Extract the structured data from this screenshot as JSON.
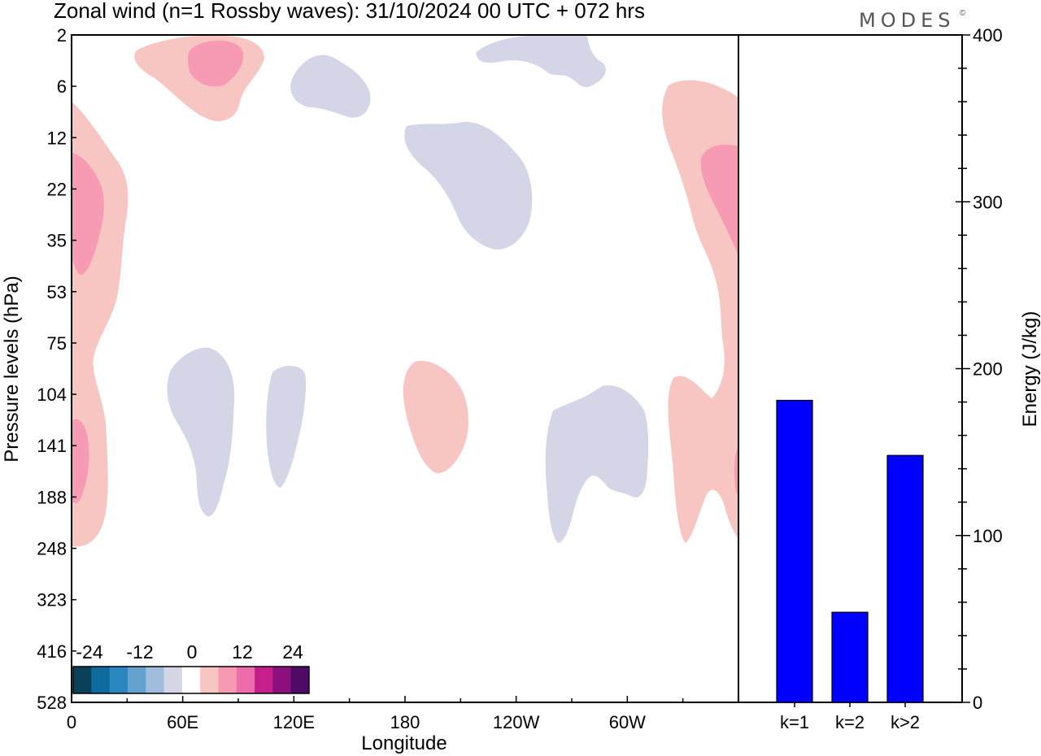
{
  "title": "Zonal wind (n=1 Rossby waves):  31/10/2024  00 UTC  + 072 hrs",
  "logo": "MODES",
  "logo_mark": "©",
  "colors": {
    "neg_weak": "#d4d5e6",
    "pos_weak": "#f8c6c2",
    "pos_mid": "#f79ab3",
    "pos_strong": "#ee6cab",
    "bar": "#0000ff"
  },
  "chart_data": [
    {
      "type": "heatmap",
      "kind": "filled contour (longitude–pressure section)",
      "xlabel": "Longitude",
      "ylabel": "Pressure levels (hPa)",
      "x_ticks": [
        "0",
        "60E",
        "120E",
        "180",
        "120W",
        "60W"
      ],
      "y_ticks": [
        "2",
        "6",
        "12",
        "22",
        "35",
        "53",
        "75",
        "104",
        "141",
        "188",
        "248",
        "323",
        "416",
        "528"
      ],
      "y_scale": "pressure levels (top = 2 hPa, bottom = 528 hPa)",
      "colorbar": {
        "labels": [
          "-24",
          "-12",
          "0",
          "12",
          "24"
        ],
        "colors": [
          "#0b3f5a",
          "#0f6a9e",
          "#2b87c0",
          "#64a1cd",
          "#9fbddd",
          "#d4d5e6",
          "#ffffff",
          "#f8c6c2",
          "#f79ab3",
          "#ee6cab",
          "#c51f8c",
          "#8b0f7c",
          "#4e0b65"
        ]
      },
      "features": [
        {
          "sign": "positive",
          "level": "weak",
          "approx_lon": "35E–55E",
          "approx_p": "2–8 hPa"
        },
        {
          "sign": "negative",
          "level": "weak",
          "approx_lon": "120E–150E",
          "approx_p": "3–9 hPa"
        },
        {
          "sign": "negative",
          "level": "weak",
          "approx_lon": "170E–140W",
          "approx_p": "11–40 hPa"
        },
        {
          "sign": "negative",
          "level": "weak",
          "approx_lon": "150W–110W",
          "approx_p": "2–5 hPa"
        },
        {
          "sign": "positive",
          "level": "strong",
          "approx_lon": "0–30E",
          "approx_p": "8–250 hPa"
        },
        {
          "sign": "positive",
          "level": "strong",
          "approx_lon": "30W–0",
          "approx_p": "6–240 hPa"
        },
        {
          "sign": "negative",
          "level": "weak",
          "approx_lon": "50E–90E",
          "approx_p": "75–190 hPa"
        },
        {
          "sign": "negative",
          "level": "weak",
          "approx_lon": "100E–120E",
          "approx_p": "104–170 hPa"
        },
        {
          "sign": "positive",
          "level": "weak",
          "approx_lon": "175E–160W",
          "approx_p": "80–175 hPa"
        },
        {
          "sign": "negative",
          "level": "weak",
          "approx_lon": "105W–65W",
          "approx_p": "100–240 hPa"
        }
      ]
    },
    {
      "type": "bar",
      "categories": [
        "k=1",
        "k=2",
        "k>2"
      ],
      "values": [
        181,
        54,
        148
      ],
      "ylabel": "Energy (J/kg)",
      "ylim": [
        0,
        400
      ],
      "y_ticks": [
        0,
        100,
        200,
        300,
        400
      ],
      "y_minor_step": 20
    }
  ]
}
